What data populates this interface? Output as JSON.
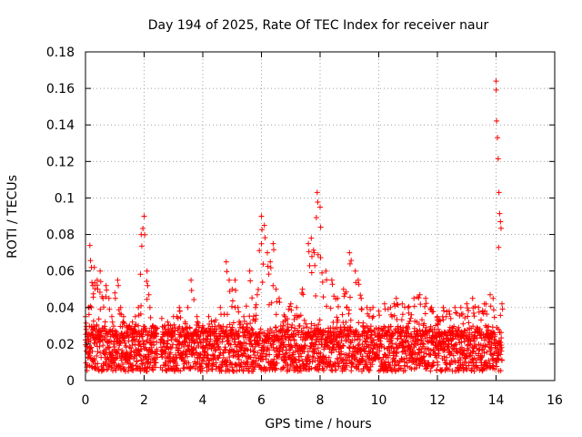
{
  "chart_data": {
    "type": "scatter",
    "title": "Day 194 of 2025, Rate Of TEC Index for receiver naur",
    "xlabel": "GPS time / hours",
    "ylabel": "ROTI / TECUs",
    "xlim": [
      0,
      16
    ],
    "ylim": [
      0,
      0.18
    ],
    "xticks": [
      0,
      2,
      4,
      6,
      8,
      10,
      12,
      14,
      16
    ],
    "xtick_labels": [
      "0",
      "2",
      "4",
      "6",
      "8",
      "10",
      "12",
      "14",
      "16"
    ],
    "yticks": [
      0,
      0.02,
      0.04,
      0.06,
      0.08,
      0.1,
      0.12,
      0.14,
      0.16,
      0.18
    ],
    "ytick_labels": [
      "0",
      "0.02",
      "0.04",
      "0.06",
      "0.08",
      "0.1",
      "0.12",
      "0.14",
      "0.16",
      "0.18"
    ],
    "grid": true,
    "marker": "+",
    "marker_color": "#ff0000",
    "data_gaps_hours": [
      [
        2.45,
        2.55
      ]
    ],
    "series": [
      {
        "name": "ROTI",
        "x": [
          0.0,
          0.1,
          0.15,
          0.2,
          0.25,
          0.3,
          0.4,
          0.5,
          0.6,
          0.7,
          0.8,
          0.9,
          1.0,
          1.1,
          1.2,
          1.3,
          1.4,
          1.5,
          1.6,
          1.7,
          1.8,
          1.9,
          2.0,
          2.1,
          2.2,
          2.3,
          2.4,
          2.6,
          2.7,
          2.8,
          2.9,
          3.0,
          3.2,
          3.4,
          3.6,
          3.8,
          4.0,
          4.2,
          4.4,
          4.6,
          4.8,
          4.9,
          5.0,
          5.1,
          5.2,
          5.4,
          5.6,
          5.8,
          6.0,
          6.1,
          6.2,
          6.3,
          6.4,
          6.5,
          6.6,
          6.8,
          7.0,
          7.2,
          7.4,
          7.6,
          7.7,
          7.8,
          7.9,
          8.0,
          8.2,
          8.4,
          8.6,
          8.8,
          9.0,
          9.2,
          9.3,
          9.4,
          9.6,
          9.8,
          10.0,
          10.2,
          10.4,
          10.6,
          10.8,
          11.0,
          11.2,
          11.4,
          11.6,
          11.8,
          12.0,
          12.2,
          12.4,
          12.6,
          12.8,
          13.0,
          13.2,
          13.4,
          13.6,
          13.8,
          13.9,
          14.0,
          14.05,
          14.1,
          14.15,
          14.2
        ],
        "upper": [
          0.035,
          0.04,
          0.074,
          0.062,
          0.052,
          0.062,
          0.055,
          0.06,
          0.045,
          0.052,
          0.045,
          0.035,
          0.048,
          0.055,
          0.04,
          0.035,
          0.03,
          0.03,
          0.032,
          0.035,
          0.04,
          0.08,
          0.09,
          0.06,
          0.04,
          0.03,
          0.028,
          0.034,
          0.03,
          0.032,
          0.03,
          0.035,
          0.04,
          0.032,
          0.055,
          0.035,
          0.03,
          0.035,
          0.032,
          0.04,
          0.065,
          0.055,
          0.05,
          0.055,
          0.04,
          0.035,
          0.06,
          0.04,
          0.09,
          0.085,
          0.07,
          0.065,
          0.075,
          0.05,
          0.045,
          0.035,
          0.042,
          0.04,
          0.05,
          0.075,
          0.078,
          0.07,
          0.103,
          0.095,
          0.06,
          0.055,
          0.045,
          0.05,
          0.07,
          0.06,
          0.055,
          0.045,
          0.04,
          0.04,
          0.038,
          0.042,
          0.04,
          0.045,
          0.042,
          0.04,
          0.045,
          0.047,
          0.045,
          0.04,
          0.035,
          0.04,
          0.038,
          0.04,
          0.04,
          0.042,
          0.045,
          0.04,
          0.042,
          0.047,
          0.045,
          0.164,
          0.133,
          0.103,
          0.087,
          0.042
        ],
        "baseline_band": [
          0.005,
          0.03
        ]
      }
    ]
  }
}
